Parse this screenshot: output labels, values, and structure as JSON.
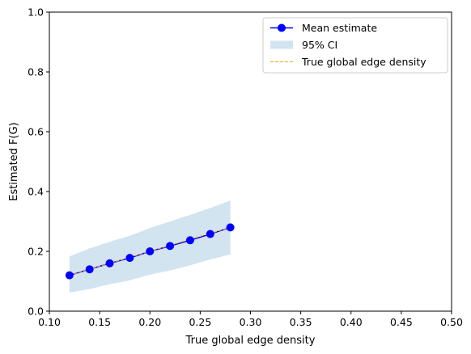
{
  "chart_data": {
    "type": "line",
    "xlabel": "True global edge density",
    "ylabel": "Estimated F(G)",
    "xlim": [
      0.1,
      0.5
    ],
    "ylim": [
      0.0,
      1.0
    ],
    "xticks": [
      "0.10",
      "0.15",
      "0.20",
      "0.25",
      "0.30",
      "0.35",
      "0.40",
      "0.45",
      "0.50"
    ],
    "yticks": [
      "0.0",
      "0.2",
      "0.4",
      "0.6",
      "0.8",
      "1.0"
    ],
    "grid": false,
    "legend_position": "top-right",
    "x": [
      0.12,
      0.14,
      0.16,
      0.18,
      0.2,
      0.22,
      0.24,
      0.26,
      0.28
    ],
    "series": [
      {
        "name": "Mean estimate",
        "style": "line-with-markers",
        "color": "#0000ff",
        "marker_color": "#0000ff",
        "values": [
          0.12,
          0.14,
          0.16,
          0.178,
          0.2,
          0.218,
          0.237,
          0.258,
          0.28
        ]
      },
      {
        "name": "95% CI",
        "style": "band",
        "color": "#d2e4f0",
        "lower": [
          0.062,
          0.074,
          0.09,
          0.103,
          0.122,
          0.136,
          0.153,
          0.173,
          0.19
        ],
        "upper": [
          0.183,
          0.21,
          0.232,
          0.252,
          0.278,
          0.3,
          0.322,
          0.345,
          0.37
        ]
      },
      {
        "name": "True global edge density",
        "style": "dashed-line",
        "color": "#ffa500",
        "values": [
          0.12,
          0.14,
          0.16,
          0.18,
          0.2,
          0.22,
          0.24,
          0.26,
          0.28
        ]
      }
    ]
  }
}
